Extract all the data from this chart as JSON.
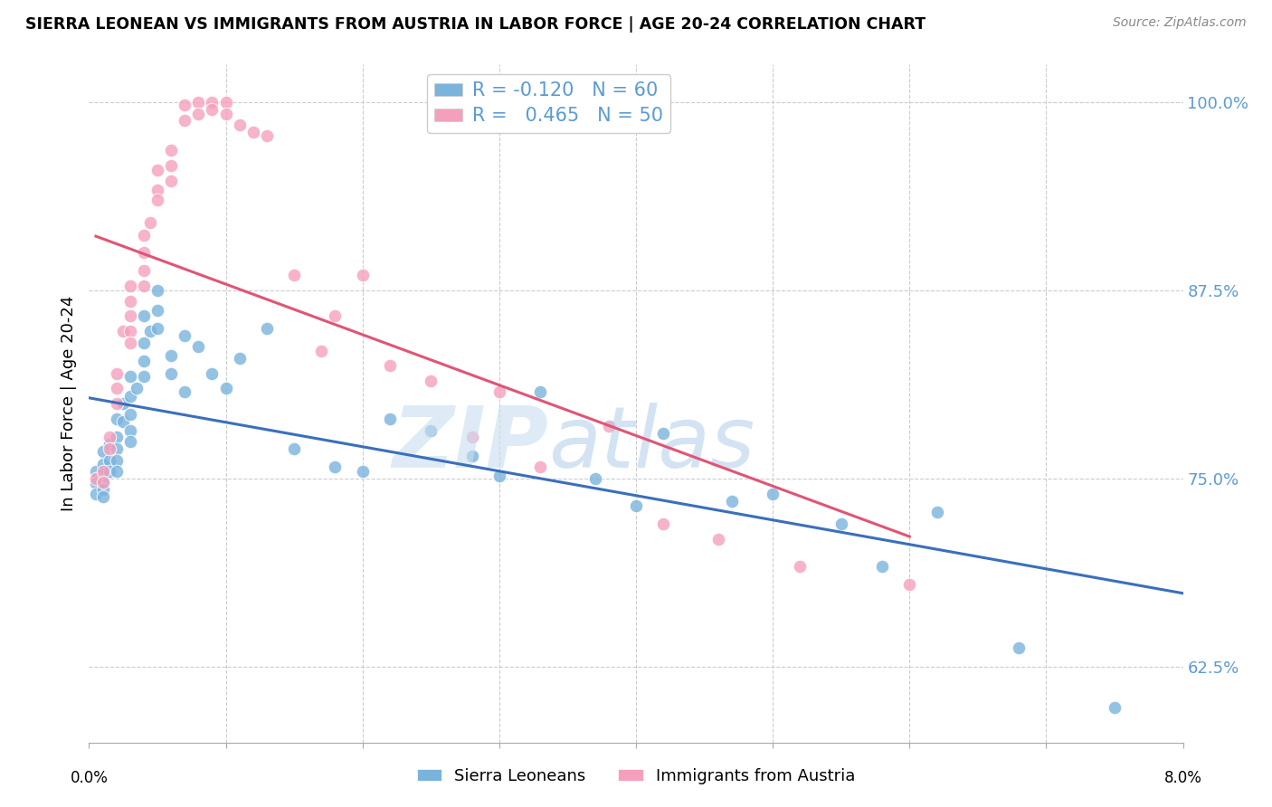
{
  "title": "SIERRA LEONEAN VS IMMIGRANTS FROM AUSTRIA IN LABOR FORCE | AGE 20-24 CORRELATION CHART",
  "source": "Source: ZipAtlas.com",
  "ylabel": "In Labor Force | Age 20-24",
  "ytick_values": [
    0.625,
    0.75,
    0.875,
    1.0
  ],
  "xlim": [
    0.0,
    0.08
  ],
  "ylim": [
    0.575,
    1.025
  ],
  "legend_r1": "R = -0.120",
  "legend_n1": "N = 60",
  "legend_r2": "R =  0.465",
  "legend_n2": "N = 50",
  "color_blue": "#7ab3dc",
  "color_pink": "#f4a0bc",
  "color_line_blue": "#3b6fba",
  "color_line_pink": "#e05575",
  "color_yticklabel": "#5b9bd5",
  "background_color": "#ffffff",
  "sierra_x": [
    0.0005,
    0.0005,
    0.0005,
    0.001,
    0.001,
    0.001,
    0.001,
    0.001,
    0.001,
    0.0015,
    0.0015,
    0.0015,
    0.002,
    0.002,
    0.002,
    0.002,
    0.002,
    0.0025,
    0.0025,
    0.003,
    0.003,
    0.003,
    0.003,
    0.003,
    0.0035,
    0.004,
    0.004,
    0.004,
    0.004,
    0.0045,
    0.005,
    0.005,
    0.005,
    0.006,
    0.006,
    0.007,
    0.007,
    0.008,
    0.009,
    0.01,
    0.011,
    0.013,
    0.015,
    0.018,
    0.02,
    0.022,
    0.025,
    0.028,
    0.03,
    0.033,
    0.037,
    0.04,
    0.042,
    0.047,
    0.05,
    0.055,
    0.058,
    0.062,
    0.068,
    0.075
  ],
  "sierra_y": [
    0.755,
    0.747,
    0.74,
    0.768,
    0.76,
    0.753,
    0.748,
    0.743,
    0.738,
    0.773,
    0.762,
    0.755,
    0.79,
    0.778,
    0.77,
    0.762,
    0.755,
    0.8,
    0.788,
    0.818,
    0.805,
    0.793,
    0.782,
    0.775,
    0.81,
    0.858,
    0.84,
    0.828,
    0.818,
    0.848,
    0.875,
    0.862,
    0.85,
    0.832,
    0.82,
    0.845,
    0.808,
    0.838,
    0.82,
    0.81,
    0.83,
    0.85,
    0.77,
    0.758,
    0.755,
    0.79,
    0.782,
    0.765,
    0.752,
    0.808,
    0.75,
    0.732,
    0.78,
    0.735,
    0.74,
    0.72,
    0.692,
    0.728,
    0.638,
    0.598
  ],
  "austria_x": [
    0.0005,
    0.001,
    0.001,
    0.0015,
    0.0015,
    0.002,
    0.002,
    0.002,
    0.0025,
    0.003,
    0.003,
    0.003,
    0.003,
    0.003,
    0.004,
    0.004,
    0.004,
    0.004,
    0.0045,
    0.005,
    0.005,
    0.005,
    0.006,
    0.006,
    0.006,
    0.007,
    0.007,
    0.008,
    0.008,
    0.009,
    0.009,
    0.01,
    0.01,
    0.011,
    0.012,
    0.013,
    0.015,
    0.017,
    0.018,
    0.02,
    0.022,
    0.025,
    0.028,
    0.03,
    0.033,
    0.038,
    0.042,
    0.046,
    0.052,
    0.06
  ],
  "austria_y": [
    0.75,
    0.755,
    0.748,
    0.778,
    0.77,
    0.82,
    0.81,
    0.8,
    0.848,
    0.878,
    0.868,
    0.858,
    0.848,
    0.84,
    0.912,
    0.9,
    0.888,
    0.878,
    0.92,
    0.955,
    0.942,
    0.935,
    0.968,
    0.958,
    0.948,
    0.998,
    0.988,
    1.0,
    0.992,
    1.0,
    0.995,
    1.0,
    0.992,
    0.985,
    0.98,
    0.978,
    0.885,
    0.835,
    0.858,
    0.885,
    0.825,
    0.815,
    0.778,
    0.808,
    0.758,
    0.785,
    0.72,
    0.71,
    0.692,
    0.68
  ]
}
